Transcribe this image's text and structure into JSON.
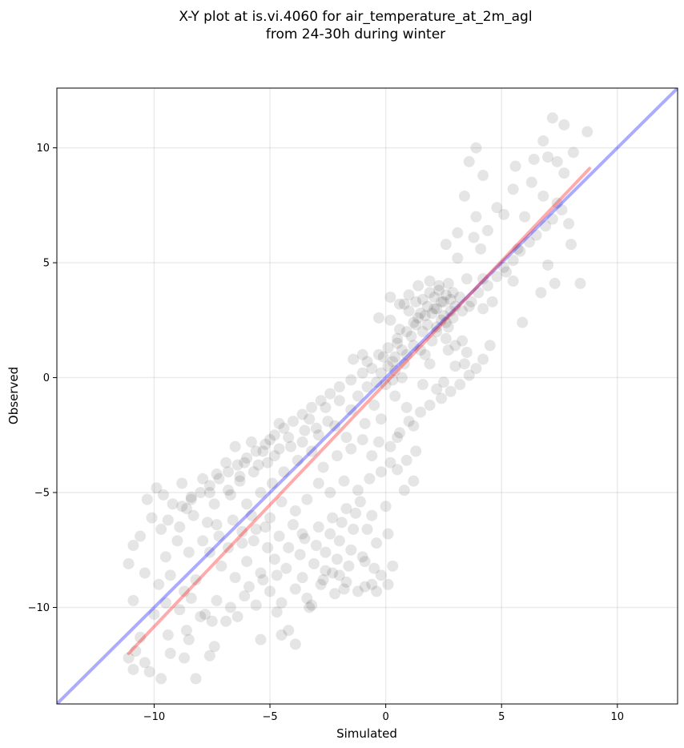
{
  "chart_data": {
    "type": "scatter",
    "title_line1": "X-Y plot at is.vi.4060 for air_temperature_at_2m_agl",
    "title_line2": "from 24-30h during winter",
    "xlabel": "Simulated",
    "ylabel": "Observed",
    "xlim": [
      -14.2,
      12.6
    ],
    "ylim": [
      -14.2,
      12.6
    ],
    "xticks": [
      -10,
      -5,
      0,
      5,
      10
    ],
    "yticks": [
      -10,
      -5,
      0,
      5,
      10
    ],
    "xtick_labels": [
      "−10",
      "−5",
      "0",
      "5",
      "10"
    ],
    "ytick_labels": [
      "−10",
      "−5",
      "0",
      "5",
      "10"
    ],
    "grid": true,
    "point_color": "#000000",
    "point_opacity": 0.1,
    "identity_line": {
      "color": "#0000ff",
      "opacity": 0.33,
      "from": [
        -14.2,
        -14.2
      ],
      "to": [
        12.6,
        12.6
      ]
    },
    "fit_line": {
      "color": "#ff0000",
      "opacity": 0.33,
      "from": [
        -11.1,
        -12.0
      ],
      "to": [
        8.8,
        9.1
      ]
    },
    "points": [
      [
        7.2,
        11.3
      ],
      [
        7.7,
        11.0
      ],
      [
        8.7,
        10.7
      ],
      [
        6.8,
        10.3
      ],
      [
        3.9,
        10.0
      ],
      [
        6.4,
        9.5
      ],
      [
        7.0,
        9.6
      ],
      [
        7.4,
        9.4
      ],
      [
        8.1,
        9.8
      ],
      [
        3.6,
        9.4
      ],
      [
        5.6,
        9.2
      ],
      [
        6.3,
        8.5
      ],
      [
        7.7,
        8.9
      ],
      [
        4.2,
        8.8
      ],
      [
        5.5,
        8.2
      ],
      [
        6.8,
        7.9
      ],
      [
        7.4,
        7.6
      ],
      [
        4.8,
        7.4
      ],
      [
        3.4,
        7.9
      ],
      [
        5.1,
        7.1
      ],
      [
        6.0,
        7.0
      ],
      [
        7.9,
        6.7
      ],
      [
        8.0,
        5.8
      ],
      [
        7.0,
        4.9
      ],
      [
        8.4,
        4.1
      ],
      [
        7.3,
        4.1
      ],
      [
        5.9,
        2.4
      ],
      [
        5.5,
        4.2
      ],
      [
        6.7,
        3.7
      ],
      [
        4.6,
        3.3
      ],
      [
        5.2,
        4.6
      ],
      [
        5.7,
        5.6
      ],
      [
        4.1,
        5.6
      ],
      [
        4.4,
        6.4
      ],
      [
        3.9,
        7.0
      ],
      [
        3.1,
        6.3
      ],
      [
        2.6,
        5.8
      ],
      [
        3.8,
        6.1
      ],
      [
        4.2,
        4.3
      ],
      [
        3.1,
        5.2
      ],
      [
        3.5,
        4.3
      ],
      [
        3.6,
        3.1
      ],
      [
        4.2,
        3.0
      ],
      [
        4.5,
        1.4
      ],
      [
        3.3,
        1.6
      ],
      [
        2.7,
        2.2
      ],
      [
        2.2,
        3.0
      ],
      [
        2.6,
        3.6
      ],
      [
        2.4,
        3.3
      ],
      [
        2.1,
        3.5
      ],
      [
        2.8,
        3.4
      ],
      [
        2.5,
        2.7
      ],
      [
        1.8,
        3.1
      ],
      [
        1.5,
        2.8
      ],
      [
        2.3,
        4.0
      ],
      [
        1.9,
        4.2
      ],
      [
        1.4,
        4.0
      ],
      [
        1.0,
        3.6
      ],
      [
        0.8,
        3.2
      ],
      [
        1.2,
        2.4
      ],
      [
        1.6,
        2.0
      ],
      [
        2.0,
        1.6
      ],
      [
        0.6,
        2.1
      ],
      [
        0.2,
        2.5
      ],
      [
        -0.3,
        2.6
      ],
      [
        0.5,
        1.5
      ],
      [
        0.9,
        1.0
      ],
      [
        1.5,
        1.2
      ],
      [
        1.9,
        0.6
      ],
      [
        2.7,
        1.2
      ],
      [
        3.0,
        0.5
      ],
      [
        2.5,
        -0.2
      ],
      [
        3.4,
        0.6
      ],
      [
        2.2,
        -0.5
      ],
      [
        1.6,
        -0.3
      ],
      [
        0.4,
        0.9
      ],
      [
        0.1,
        0.5
      ],
      [
        -0.2,
        0.2
      ],
      [
        0.3,
        -0.1
      ],
      [
        -0.4,
        -0.2
      ],
      [
        0.7,
        0.0
      ],
      [
        0.0,
        -0.3
      ],
      [
        -0.6,
        0.4
      ],
      [
        -1.0,
        1.0
      ],
      [
        -1.4,
        0.8
      ],
      [
        -0.8,
        -0.4
      ],
      [
        -1.2,
        -0.8
      ],
      [
        -0.5,
        -1.2
      ],
      [
        0.4,
        -0.8
      ],
      [
        0.9,
        -1.3
      ],
      [
        1.2,
        -2.1
      ],
      [
        0.5,
        -2.6
      ],
      [
        -0.2,
        -1.8
      ],
      [
        -0.9,
        -2.0
      ],
      [
        -1.5,
        -1.4
      ],
      [
        -2.0,
        -1.0
      ],
      [
        -2.6,
        -1.3
      ],
      [
        -2.2,
        -2.1
      ],
      [
        -1.7,
        -2.6
      ],
      [
        -2.9,
        -2.5
      ],
      [
        -3.3,
        -1.8
      ],
      [
        -3.6,
        -2.8
      ],
      [
        -4.2,
        -2.6
      ],
      [
        -4.6,
        -2.0
      ],
      [
        -5.0,
        -2.7
      ],
      [
        -4.8,
        -3.4
      ],
      [
        -5.3,
        -3.2
      ],
      [
        -5.8,
        -2.8
      ],
      [
        -5.5,
        -3.8
      ],
      [
        -6.1,
        -3.7
      ],
      [
        -6.5,
        -3.0
      ],
      [
        -6.9,
        -3.7
      ],
      [
        -6.3,
        -4.5
      ],
      [
        -6.8,
        -4.9
      ],
      [
        -7.3,
        -4.2
      ],
      [
        -7.6,
        -5.0
      ],
      [
        -7.9,
        -4.4
      ],
      [
        -8.4,
        -5.2
      ],
      [
        -8.8,
        -4.6
      ],
      [
        -8.6,
        -5.7
      ],
      [
        -9.2,
        -5.5
      ],
      [
        -9.6,
        -5.1
      ],
      [
        -9.9,
        -4.8
      ],
      [
        -10.3,
        -5.3
      ],
      [
        -9.4,
        -6.2
      ],
      [
        -8.9,
        -6.5
      ],
      [
        -8.3,
        -6.0
      ],
      [
        -7.7,
        -6.3
      ],
      [
        -7.2,
        -6.9
      ],
      [
        -6.6,
        -6.2
      ],
      [
        -6.0,
        -5.5
      ],
      [
        -5.4,
        -5.0
      ],
      [
        -4.9,
        -4.6
      ],
      [
        -4.4,
        -4.1
      ],
      [
        -3.8,
        -3.6
      ],
      [
        -3.2,
        -3.2
      ],
      [
        -2.7,
        -3.9
      ],
      [
        -2.1,
        -3.4
      ],
      [
        -1.5,
        -3.1
      ],
      [
        -1.0,
        -2.7
      ],
      [
        -0.6,
        -3.4
      ],
      [
        -0.2,
        -4.1
      ],
      [
        0.2,
        -3.7
      ],
      [
        -0.7,
        -4.4
      ],
      [
        -1.2,
        -4.9
      ],
      [
        -1.8,
        -4.5
      ],
      [
        -2.4,
        -5.0
      ],
      [
        -2.9,
        -4.6
      ],
      [
        -3.4,
        -5.3
      ],
      [
        -3.9,
        -5.8
      ],
      [
        -4.5,
        -5.4
      ],
      [
        -5.0,
        -6.1
      ],
      [
        -5.6,
        -6.6
      ],
      [
        -6.2,
        -7.2
      ],
      [
        -5.1,
        -7.4
      ],
      [
        -4.6,
        -6.9
      ],
      [
        -4.0,
        -6.4
      ],
      [
        -3.5,
        -7.0
      ],
      [
        -2.9,
        -6.5
      ],
      [
        -2.3,
        -6.1
      ],
      [
        -1.7,
        -5.7
      ],
      [
        -1.1,
        -5.4
      ],
      [
        -0.6,
        -6.0
      ],
      [
        0.0,
        -5.6
      ],
      [
        -1.4,
        -6.6
      ],
      [
        -2.0,
        -7.1
      ],
      [
        -2.6,
        -7.6
      ],
      [
        -3.1,
        -8.1
      ],
      [
        -3.7,
        -7.7
      ],
      [
        -4.3,
        -8.3
      ],
      [
        -4.8,
        -7.9
      ],
      [
        -5.4,
        -8.5
      ],
      [
        -6.0,
        -8.0
      ],
      [
        -6.5,
        -8.7
      ],
      [
        -7.1,
        -8.2
      ],
      [
        -7.6,
        -7.6
      ],
      [
        -8.2,
        -8.8
      ],
      [
        -8.7,
        -9.3
      ],
      [
        -9.3,
        -8.6
      ],
      [
        -9.8,
        -9.0
      ],
      [
        -10.4,
        -8.5
      ],
      [
        -10.9,
        -9.7
      ],
      [
        -10.0,
        -10.3
      ],
      [
        -9.5,
        -9.8
      ],
      [
        -8.9,
        -10.1
      ],
      [
        -8.4,
        -9.6
      ],
      [
        -7.8,
        -10.3
      ],
      [
        -7.3,
        -9.7
      ],
      [
        -6.7,
        -10.0
      ],
      [
        -6.1,
        -9.5
      ],
      [
        -5.6,
        -9.9
      ],
      [
        -5.0,
        -9.3
      ],
      [
        -4.5,
        -9.8
      ],
      [
        -3.9,
        -9.2
      ],
      [
        -3.4,
        -9.6
      ],
      [
        -2.8,
        -9.0
      ],
      [
        -2.3,
        -8.5
      ],
      [
        -1.7,
        -8.9
      ],
      [
        -1.2,
        -9.3
      ],
      [
        -0.6,
        -9.0
      ],
      [
        -0.2,
        -8.6
      ],
      [
        0.3,
        -8.2
      ],
      [
        -0.9,
        -8.0
      ],
      [
        -1.5,
        -7.5
      ],
      [
        -2.1,
        -7.9
      ],
      [
        -2.6,
        -8.4
      ],
      [
        -0.4,
        -7.2
      ],
      [
        0.1,
        -6.8
      ],
      [
        -0.8,
        -6.6
      ],
      [
        -3.2,
        -9.9
      ],
      [
        -6.4,
        -10.4
      ],
      [
        -6.9,
        -10.6
      ],
      [
        -7.5,
        -10.6
      ],
      [
        -8.0,
        -10.4
      ],
      [
        -9.4,
        -11.2
      ],
      [
        -10.6,
        -11.3
      ],
      [
        -10.8,
        -11.9
      ],
      [
        -10.4,
        -12.4
      ],
      [
        -11.1,
        -12.2
      ],
      [
        -10.9,
        -12.7
      ],
      [
        -10.2,
        -12.8
      ],
      [
        -9.7,
        -13.1
      ],
      [
        -8.2,
        -13.1
      ],
      [
        -8.7,
        -12.2
      ],
      [
        -9.3,
        -12.0
      ],
      [
        -7.6,
        -12.1
      ],
      [
        -7.4,
        -11.7
      ],
      [
        -8.6,
        -11.0
      ],
      [
        -8.5,
        -11.4
      ],
      [
        -11.1,
        -8.1
      ],
      [
        -10.9,
        -7.3
      ],
      [
        -10.6,
        -6.9
      ],
      [
        -10.1,
        -6.1
      ],
      [
        -9.7,
        -6.6
      ],
      [
        -9.5,
        -7.8
      ],
      [
        -9.0,
        -7.1
      ],
      [
        -8.5,
        -7.6
      ],
      [
        -7.9,
        -7.1
      ],
      [
        -7.3,
        -6.4
      ],
      [
        -6.8,
        -7.4
      ],
      [
        -6.2,
        -6.7
      ],
      [
        -5.7,
        -7.1
      ],
      [
        -5.2,
        -6.5
      ],
      [
        -5.8,
        -6.0
      ],
      [
        -4.2,
        -7.4
      ],
      [
        -3.6,
        -6.8
      ],
      [
        -3.0,
        -7.3
      ],
      [
        -2.4,
        -6.8
      ],
      [
        -1.9,
        -6.3
      ],
      [
        -1.3,
        -5.9
      ],
      [
        -5.4,
        -11.4
      ],
      [
        -4.5,
        -11.2
      ],
      [
        -3.9,
        -11.6
      ],
      [
        -4.2,
        -11.0
      ],
      [
        -3.3,
        -10.0
      ],
      [
        -4.7,
        -10.2
      ],
      [
        -5.9,
        -9.1
      ],
      [
        -5.3,
        -8.8
      ],
      [
        -4.7,
        -8.6
      ],
      [
        -3.6,
        -8.7
      ],
      [
        -2.7,
        -8.8
      ],
      [
        -2.2,
        -9.4
      ],
      [
        -1.8,
        -9.2
      ],
      [
        -0.9,
        -9.1
      ],
      [
        -0.4,
        -9.3
      ],
      [
        0.1,
        -9.0
      ],
      [
        -0.5,
        -8.3
      ],
      [
        -1.0,
        -7.8
      ],
      [
        -1.6,
        -8.2
      ],
      [
        -2.0,
        -8.6
      ],
      [
        0.8,
        -4.9
      ],
      [
        1.2,
        -4.5
      ],
      [
        0.5,
        -4.0
      ],
      [
        0.9,
        -3.6
      ],
      [
        1.3,
        -3.2
      ],
      [
        0.2,
        -3.0
      ],
      [
        -0.3,
        -2.8
      ],
      [
        0.6,
        -2.4
      ],
      [
        1.0,
        -1.9
      ],
      [
        1.5,
        -1.5
      ],
      [
        1.9,
        -1.2
      ],
      [
        2.4,
        -0.9
      ],
      [
        2.8,
        -0.6
      ],
      [
        3.2,
        -0.3
      ],
      [
        3.6,
        0.1
      ],
      [
        3.9,
        0.4
      ],
      [
        4.2,
        0.8
      ],
      [
        3.5,
        1.1
      ],
      [
        3.0,
        1.4
      ],
      [
        2.6,
        1.7
      ],
      [
        2.2,
        2.0
      ],
      [
        1.8,
        2.3
      ],
      [
        1.4,
        2.6
      ],
      [
        1.0,
        2.9
      ],
      [
        0.6,
        3.2
      ],
      [
        0.2,
        3.5
      ],
      [
        2.9,
        2.6
      ],
      [
        3.3,
        2.9
      ],
      [
        3.7,
        3.3
      ],
      [
        4.0,
        3.7
      ],
      [
        4.4,
        4.0
      ],
      [
        4.8,
        4.4
      ],
      [
        5.1,
        4.8
      ],
      [
        5.5,
        5.1
      ],
      [
        5.8,
        5.5
      ],
      [
        6.2,
        5.9
      ],
      [
        6.5,
        6.2
      ],
      [
        6.9,
        6.6
      ],
      [
        7.2,
        6.9
      ],
      [
        7.6,
        7.3
      ],
      [
        -1.0,
        0.2
      ],
      [
        -1.5,
        -0.1
      ],
      [
        -2.0,
        -0.4
      ],
      [
        -2.4,
        -0.7
      ],
      [
        -2.8,
        -1.0
      ],
      [
        -3.2,
        -1.3
      ],
      [
        -3.6,
        -1.6
      ],
      [
        -4.0,
        -1.9
      ],
      [
        -4.4,
        -2.2
      ],
      [
        -4.8,
        -2.5
      ],
      [
        -5.2,
        -2.9
      ],
      [
        -5.6,
        -3.2
      ],
      [
        -6.0,
        -3.5
      ],
      [
        -6.4,
        -3.8
      ],
      [
        -6.8,
        -4.1
      ],
      [
        -7.2,
        -4.4
      ],
      [
        -7.6,
        -4.7
      ],
      [
        -8.0,
        -5.0
      ],
      [
        -8.4,
        -5.3
      ],
      [
        -8.8,
        -5.6
      ],
      [
        -0.8,
        0.7
      ],
      [
        -0.3,
        1.0
      ],
      [
        0.1,
        1.3
      ],
      [
        0.5,
        1.7
      ],
      [
        0.9,
        2.0
      ],
      [
        1.3,
        2.3
      ],
      [
        1.7,
        2.7
      ],
      [
        2.1,
        3.0
      ],
      [
        2.5,
        3.3
      ],
      [
        2.9,
        3.7
      ],
      [
        -2.5,
        -1.9
      ],
      [
        -3.0,
        -2.2
      ],
      [
        -3.5,
        -2.3
      ],
      [
        -4.1,
        -3.0
      ],
      [
        -4.6,
        -3.1
      ],
      [
        -5.1,
        -3.7
      ],
      [
        -5.7,
        -4.1
      ],
      [
        -6.3,
        -4.3
      ],
      [
        -6.7,
        -5.1
      ],
      [
        -7.4,
        -5.5
      ],
      [
        2.3,
        3.8
      ],
      [
        2.7,
        4.1
      ],
      [
        1.6,
        3.4
      ],
      [
        2.0,
        2.8
      ],
      [
        2.4,
        2.5
      ],
      [
        2.8,
        2.9
      ],
      [
        3.2,
        3.5
      ],
      [
        3.0,
        3.1
      ],
      [
        2.6,
        2.4
      ],
      [
        2.2,
        2.2
      ],
      [
        1.9,
        3.7
      ],
      [
        1.3,
        3.3
      ],
      [
        1.1,
        1.8
      ],
      [
        0.7,
        1.2
      ],
      [
        0.3,
        0.7
      ],
      [
        -0.1,
        0.9
      ],
      [
        0.4,
        0.3
      ],
      [
        0.8,
        0.6
      ],
      [
        1.2,
        1.4
      ],
      [
        1.7,
        1.0
      ]
    ]
  }
}
